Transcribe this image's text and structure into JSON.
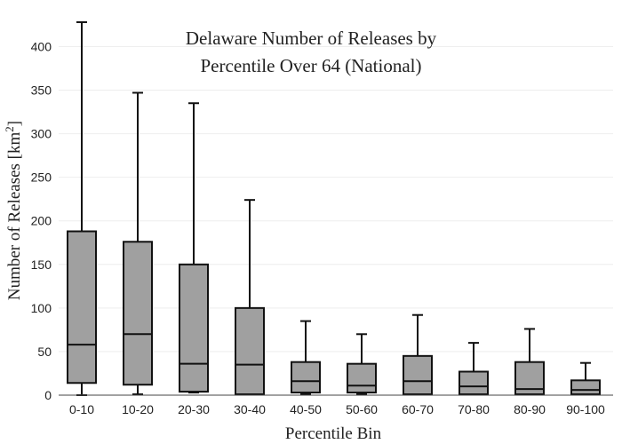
{
  "chart_data": {
    "type": "box",
    "title_lines": [
      "Delaware Number of Releases by",
      "Percentile Over 64 (National)"
    ],
    "xlabel": "Percentile Bin",
    "ylabel": "Number of Releases  [km",
    "ylabel_sup": "2",
    "ylabel_close": "]",
    "ylim": [
      0,
      430
    ],
    "yticks": [
      0,
      50,
      100,
      150,
      200,
      250,
      300,
      350,
      400
    ],
    "grid": true,
    "categories": [
      "0-10",
      "10-20",
      "20-30",
      "30-40",
      "40-50",
      "50-60",
      "60-70",
      "70-80",
      "80-90",
      "90-100"
    ],
    "boxes": [
      {
        "min": 0,
        "q1": 14,
        "median": 58,
        "q3": 188,
        "max": 428
      },
      {
        "min": 1,
        "q1": 12,
        "median": 70,
        "q3": 176,
        "max": 347
      },
      {
        "min": 3,
        "q1": 4,
        "median": 36,
        "q3": 150,
        "max": 335
      },
      {
        "min": 1,
        "q1": 1,
        "median": 35,
        "q3": 100,
        "max": 224
      },
      {
        "min": 1,
        "q1": 3,
        "median": 16,
        "q3": 38,
        "max": 85
      },
      {
        "min": 1,
        "q1": 3,
        "median": 11,
        "q3": 36,
        "max": 70
      },
      {
        "min": 1,
        "q1": 1,
        "median": 16,
        "q3": 45,
        "max": 92
      },
      {
        "min": 1,
        "q1": 1,
        "median": 10,
        "q3": 27,
        "max": 60
      },
      {
        "min": 1,
        "q1": 1,
        "median": 7,
        "q3": 38,
        "max": 76
      },
      {
        "min": 1,
        "q1": 1,
        "median": 6,
        "q3": 17,
        "max": 37
      }
    ]
  }
}
